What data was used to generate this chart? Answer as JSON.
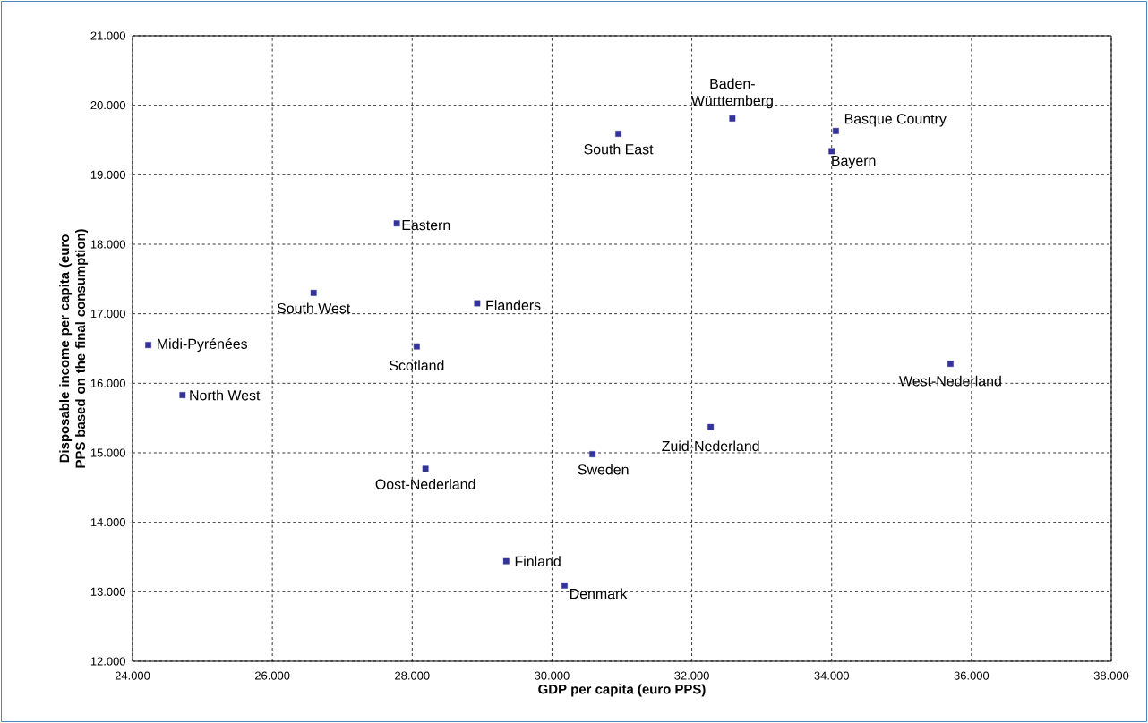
{
  "chart_data": {
    "type": "scatter",
    "xlabel": "GDP per capita (euro PPS)",
    "ylabel": "Disposable income per capita (euro PPS based on the final consumption)",
    "series": [
      {
        "color": "#333399",
        "x": [
          24225,
          24715,
          26590,
          27780,
          28065,
          28190,
          28930,
          29345,
          30180,
          30580,
          30950,
          32270,
          32580,
          34000,
          34060,
          35700
        ],
        "values": [
          16550,
          15830,
          17300,
          18300,
          16530,
          14770,
          17150,
          13440,
          13090,
          14980,
          19590,
          15370,
          19810,
          19340,
          19630,
          16280
        ]
      }
    ],
    "annotations": [
      {
        "text": "Midi-Pyrénées",
        "x": 24225,
        "y": 16550
      },
      {
        "text": "North West",
        "x": 24715,
        "y": 15830
      },
      {
        "text": "South West",
        "x": 26590,
        "y": 17300
      },
      {
        "text": "Eastern",
        "x": 27780,
        "y": 18300
      },
      {
        "text": "Scotland",
        "x": 28065,
        "y": 16530
      },
      {
        "text": "Oost-Nederland",
        "x": 28190,
        "y": 14770
      },
      {
        "text": "Flanders",
        "x": 28930,
        "y": 17150
      },
      {
        "text": "Finland",
        "x": 29345,
        "y": 13440
      },
      {
        "text": "Denmark",
        "x": 30180,
        "y": 13090
      },
      {
        "text": "Sweden",
        "x": 30580,
        "y": 14980
      },
      {
        "text": "South East",
        "x": 30950,
        "y": 19590
      },
      {
        "text": "Zuid-Nederland",
        "x": 32270,
        "y": 15370
      },
      {
        "text": "Baden-Württemberg",
        "x": 32580,
        "y": 19810
      },
      {
        "text": "Bayern",
        "x": 34000,
        "y": 19340
      },
      {
        "text": "Basque Country",
        "x": 34060,
        "y": 19630
      },
      {
        "text": "West-Nederland",
        "x": 35700,
        "y": 16280
      }
    ],
    "xlim": [
      24000,
      38000
    ],
    "xticks": [
      {
        "value": 24000,
        "label": "24.000"
      },
      {
        "value": 26000,
        "label": "26.000"
      },
      {
        "value": 28000,
        "label": "28.000"
      },
      {
        "value": 30000,
        "label": "30.000"
      },
      {
        "value": 32000,
        "label": "32.000"
      },
      {
        "value": 34000,
        "label": "34.000"
      },
      {
        "value": 36000,
        "label": "36.000"
      },
      {
        "value": 38000,
        "label": "38.000"
      }
    ],
    "ylim": [
      12000,
      21000
    ],
    "yticks": [
      {
        "value": 12000,
        "label": "12.000"
      },
      {
        "value": 13000,
        "label": "13.000"
      },
      {
        "value": 14000,
        "label": "14.000"
      },
      {
        "value": 15000,
        "label": "15.000"
      },
      {
        "value": 16000,
        "label": "16.000"
      },
      {
        "value": 17000,
        "label": "17.000"
      },
      {
        "value": 18000,
        "label": "18.000"
      },
      {
        "value": 19000,
        "label": "19.000"
      },
      {
        "value": 20000,
        "label": "20.000"
      },
      {
        "value": 21000,
        "label": "21.000"
      }
    ],
    "grid": true,
    "marker": "square"
  }
}
